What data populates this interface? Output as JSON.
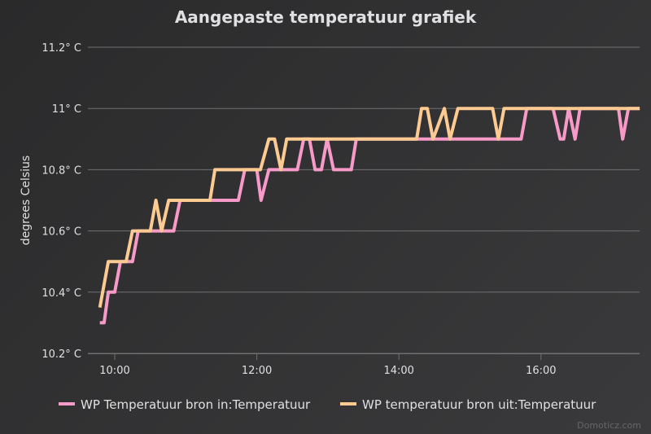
{
  "chart_data": {
    "type": "line",
    "title": "Aangepaste temperatuur grafiek",
    "ylabel": "degrees Celsius",
    "xlabel": "",
    "ylim": [
      10.2,
      11.2
    ],
    "xlim_hours": [
      9.62,
      17.39
    ],
    "yticks": [
      {
        "value": 10.2,
        "label": "10.2° C"
      },
      {
        "value": 10.4,
        "label": "10.4° C"
      },
      {
        "value": 10.6,
        "label": "10.6° C"
      },
      {
        "value": 10.8,
        "label": "10.8° C"
      },
      {
        "value": 11.0,
        "label": "11° C"
      },
      {
        "value": 11.2,
        "label": "11.2° C"
      }
    ],
    "xticks": [
      {
        "value": 10,
        "label": "10:00"
      },
      {
        "value": 12,
        "label": "12:00"
      },
      {
        "value": 14,
        "label": "14:00"
      },
      {
        "value": 16,
        "label": "16:00"
      }
    ],
    "grid": true,
    "legend_position": "bottom",
    "series": [
      {
        "name": "WP Temperatuur bron in:Temperatuur",
        "color": "#f79ac8",
        "points": [
          [
            9.79,
            10.3
          ],
          [
            9.85,
            10.3
          ],
          [
            9.91,
            10.4
          ],
          [
            10.0,
            10.4
          ],
          [
            10.08,
            10.5
          ],
          [
            10.25,
            10.5
          ],
          [
            10.33,
            10.6
          ],
          [
            10.83,
            10.6
          ],
          [
            10.92,
            10.7
          ],
          [
            11.74,
            10.7
          ],
          [
            11.83,
            10.8
          ],
          [
            12.0,
            10.8
          ],
          [
            12.06,
            10.7
          ],
          [
            12.17,
            10.8
          ],
          [
            12.57,
            10.8
          ],
          [
            12.66,
            10.9
          ],
          [
            12.74,
            10.9
          ],
          [
            12.82,
            10.8
          ],
          [
            12.91,
            10.8
          ],
          [
            12.99,
            10.9
          ],
          [
            13.08,
            10.8
          ],
          [
            13.33,
            10.8
          ],
          [
            13.4,
            10.9
          ],
          [
            15.72,
            10.9
          ],
          [
            15.8,
            11.0
          ],
          [
            16.17,
            11.0
          ],
          [
            16.27,
            10.9
          ],
          [
            16.32,
            10.9
          ],
          [
            16.39,
            11.0
          ],
          [
            16.48,
            10.9
          ],
          [
            16.55,
            11.0
          ],
          [
            17.09,
            11.0
          ],
          [
            17.15,
            10.9
          ],
          [
            17.23,
            11.0
          ],
          [
            17.39,
            11.0
          ]
        ]
      },
      {
        "name": "WP temperatuur bron uit:Temperatuur",
        "color": "#fdca92",
        "points": [
          [
            9.79,
            10.35
          ],
          [
            9.91,
            10.5
          ],
          [
            10.16,
            10.5
          ],
          [
            10.25,
            10.6
          ],
          [
            10.5,
            10.6
          ],
          [
            10.58,
            10.7
          ],
          [
            10.66,
            10.6
          ],
          [
            10.76,
            10.7
          ],
          [
            11.34,
            10.7
          ],
          [
            11.41,
            10.8
          ],
          [
            12.05,
            10.8
          ],
          [
            12.17,
            10.9
          ],
          [
            12.25,
            10.9
          ],
          [
            12.34,
            10.8
          ],
          [
            12.42,
            10.9
          ],
          [
            14.25,
            10.9
          ],
          [
            14.32,
            11.0
          ],
          [
            14.4,
            11.0
          ],
          [
            14.48,
            10.9
          ],
          [
            14.64,
            11.0
          ],
          [
            14.72,
            10.9
          ],
          [
            14.83,
            11.0
          ],
          [
            15.32,
            11.0
          ],
          [
            15.4,
            10.9
          ],
          [
            15.48,
            11.0
          ],
          [
            17.39,
            11.0
          ]
        ]
      }
    ]
  },
  "credit": "Domoticz.com"
}
